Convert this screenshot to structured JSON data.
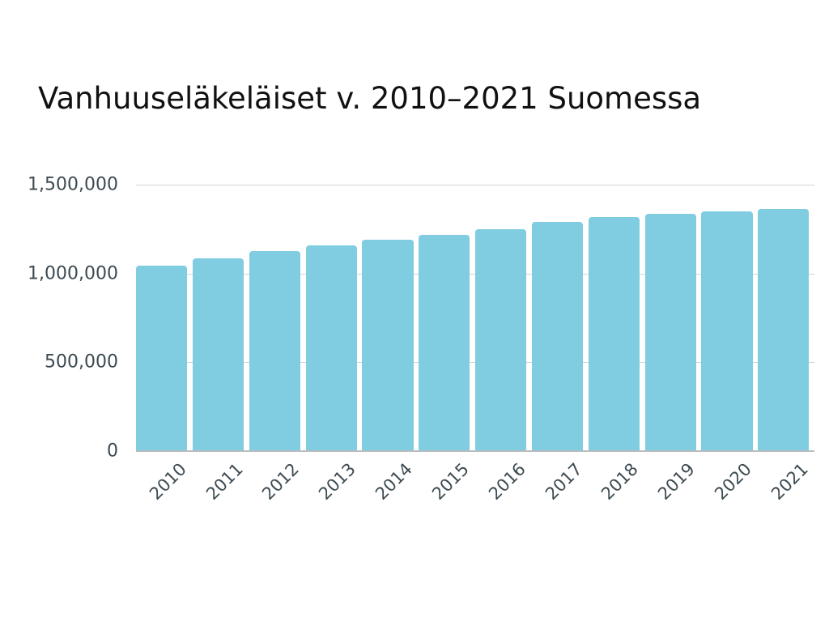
{
  "chart_data": {
    "type": "bar",
    "title": "Vanhuuseläkeläiset v. 2010–2021 Suomessa",
    "xlabel": "",
    "ylabel": "",
    "categories": [
      "2010",
      "2011",
      "2012",
      "2013",
      "2014",
      "2015",
      "2016",
      "2017",
      "2018",
      "2019",
      "2020",
      "2021"
    ],
    "values": [
      1044000,
      1085000,
      1126000,
      1158000,
      1190000,
      1217000,
      1249000,
      1290000,
      1317000,
      1335000,
      1349000,
      1363000
    ],
    "ylim": [
      0,
      1500000
    ],
    "yticks": [
      0,
      500000,
      1000000,
      1500000
    ],
    "ytick_labels": [
      "0",
      "500,000",
      "1,000,000",
      "1,500,000"
    ],
    "grid": true,
    "legend": null,
    "bar_color": "#80cce0",
    "gridline_color": "#cfd4d8",
    "tick_label_color": "#3d4a52"
  },
  "header": {
    "title": "Vanhuuseläkeläiset v. 2010–2021 Suomessa"
  }
}
